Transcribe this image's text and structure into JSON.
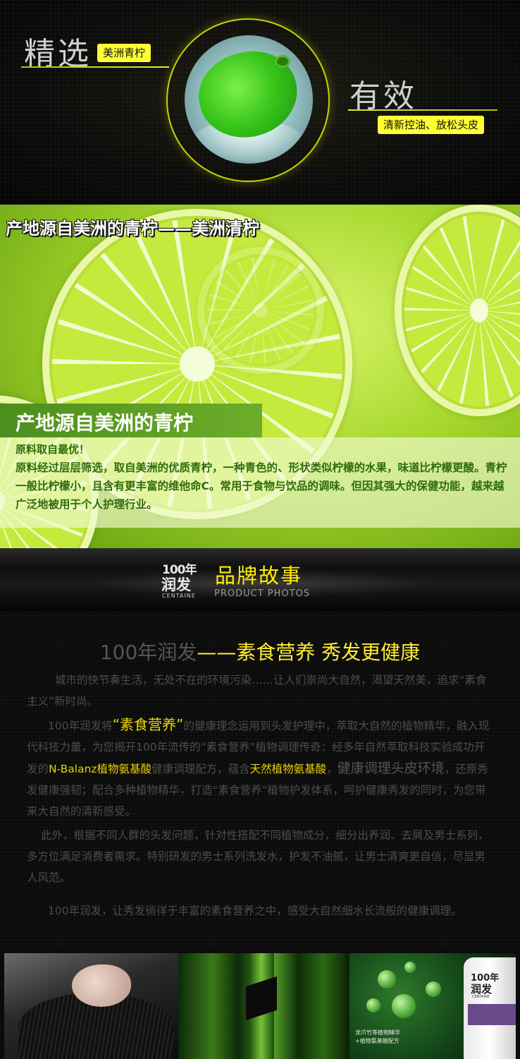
{
  "hero": {
    "left_word": "精选",
    "left_tag": "美洲青柠",
    "right_word": "有效",
    "right_tag": "清新控油、放松头皮"
  },
  "lime_section": {
    "headline": "产地源自美洲的青柠——美洲清柠",
    "banner": "产地源自美洲的青柠",
    "para_head": "原料取自最优！",
    "para_body": "原料经过层层筛选，取自美洲的优质青柠，一种青色的、形状类似柠檬的水果，味道比柠檬更酸。青柠一般比柠檬小，且含有更丰富的维他命C。常用于食物与饮品的调味。但因其强大的保健功能，越来越广泛地被用于个人护理行业。"
  },
  "brand": {
    "logo_line1": "100年",
    "logo_line2": "润发",
    "logo_line3": "CENTAINE",
    "title": "品牌故事",
    "subtitle": "PRODUCT PHOTOS"
  },
  "story": {
    "heading_a": "100年润发",
    "heading_b": "——素食营养 秀发更健康",
    "p1": "城市的快节奏生活，无处不在的环境污染……让人们崇尚大自然，渴望天然美，追求“素食主义”新时尚。",
    "p2_a": "100年润发将",
    "p2_hl1": "“素食营养”",
    "p2_b": "的健康理念运用到头发护理中，萃取大自然的植物精华，融入现代科技力量，为您揭开100年流传的“素食营养”植物调理传奇：经多年自然萃取科技实验成功开发的",
    "p2_hl2": "N-Balanz植物氨基酸",
    "p2_c": "健康调理配方，蕴含",
    "p2_hl3": "天然植物氨基酸",
    "p2_d": "，",
    "p2_big": "健康调理头皮环境",
    "p2_e": "，还原秀发健康强韧；配合多种植物精华，打造“素食营养”植物护发体系，呵护健康秀发的同时，为您带来大自然的清新感受。",
    "p3": "此外，根据不同人群的头发问题，针对性搭配不同植物成分，细分出养润、去屑及男士系列，多方位满足消费者需求。特别研发的男士系列洗发水，护发不油腻，让男士清爽更自信，尽显男人风范。",
    "p4": "100年润发，让秀发徜徉于丰富的素食营养之中，感受大自然细水长流般的健康调理。"
  },
  "photos": {
    "bottle_line1": "100年",
    "bottle_line2": "润发",
    "bottle_line3": "CENTAINE",
    "caption_1": "龙爪竹等植物精华",
    "caption_2": "+植物氨基酸配方"
  }
}
